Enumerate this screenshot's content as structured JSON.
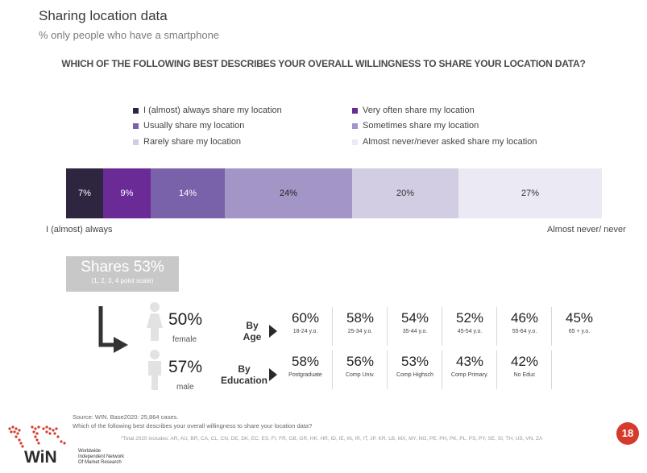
{
  "title": "Sharing location data",
  "subtitle": "% only people who have a smartphone",
  "question": "WHICH OF THE FOLLOWING BEST DESCRIBES YOUR OVERALL WILLINGNESS TO SHARE YOUR LOCATION DATA?",
  "colors": {
    "c1": "#2e2640",
    "c2": "#6a2b97",
    "c3": "#7a62aa",
    "c4": "#a396c7",
    "c5": "#d2cde3",
    "c6": "#ebe9f3"
  },
  "chart_data": {
    "type": "bar",
    "orientation": "horizontal-stacked",
    "categories": [
      "I (almost) always share my location",
      "Very often share my location",
      "Usually share my location",
      "Sometimes share my location",
      "Rarely share my location",
      "Almost never/never asked share my location"
    ],
    "values": [
      7,
      9,
      14,
      24,
      20,
      27
    ],
    "value_labels": [
      "7%",
      "9%",
      "14%",
      "24%",
      "20%",
      "27%"
    ],
    "left_end_label": "I (almost) always",
    "right_end_label": "Almost never/ never",
    "legend_position": "top"
  },
  "shares": {
    "main": "Shares 53%",
    "sub": "(1, 2, 3, 4 point scale)"
  },
  "gender": {
    "female_value": "50%",
    "female_label": "female",
    "male_value": "57%",
    "male_label": "male"
  },
  "by_age": {
    "label_line1": "By",
    "label_line2": "Age",
    "cells": [
      {
        "value": "60%",
        "label": "18-24 y.o."
      },
      {
        "value": "58%",
        "label": "25-34 y.o."
      },
      {
        "value": "54%",
        "label": "35-44 y.o."
      },
      {
        "value": "52%",
        "label": "45-54 y.o."
      },
      {
        "value": "46%",
        "label": "55-64 y.o."
      },
      {
        "value": "45%",
        "label": "65 + y.o."
      }
    ]
  },
  "by_education": {
    "label_line1": "By",
    "label_line2": "Education",
    "cells": [
      {
        "value": "58%",
        "label": "Postgraduate"
      },
      {
        "value": "56%",
        "label": "Comp Univ."
      },
      {
        "value": "53%",
        "label": "Comp Highsch"
      },
      {
        "value": "43%",
        "label": "Comp Primary."
      },
      {
        "value": "42%",
        "label": "No Educ"
      }
    ]
  },
  "source_line1": "Source:  WIN.  Base2020: 25,864  cases.",
  "source_line2": "Which of the following  best describes your overall willingness to share your location data?",
  "footnote": "*Total 2020 includes: AR, AU, BR, CA, CL, CN, DE, DK, EC, ES, FI, FR, GB, GR, HK, HR, ID, IE, IN, IR, IT, JP, KR, LB, MX, MY, NG, PE, PH, PK, PL, PS, PY, SE, SI, TH, US, VN, ZA",
  "page_number": "18",
  "logo_text": "WiN",
  "logo_sub": [
    "Worldwide",
    "Independent Network",
    "Of Market Research"
  ]
}
